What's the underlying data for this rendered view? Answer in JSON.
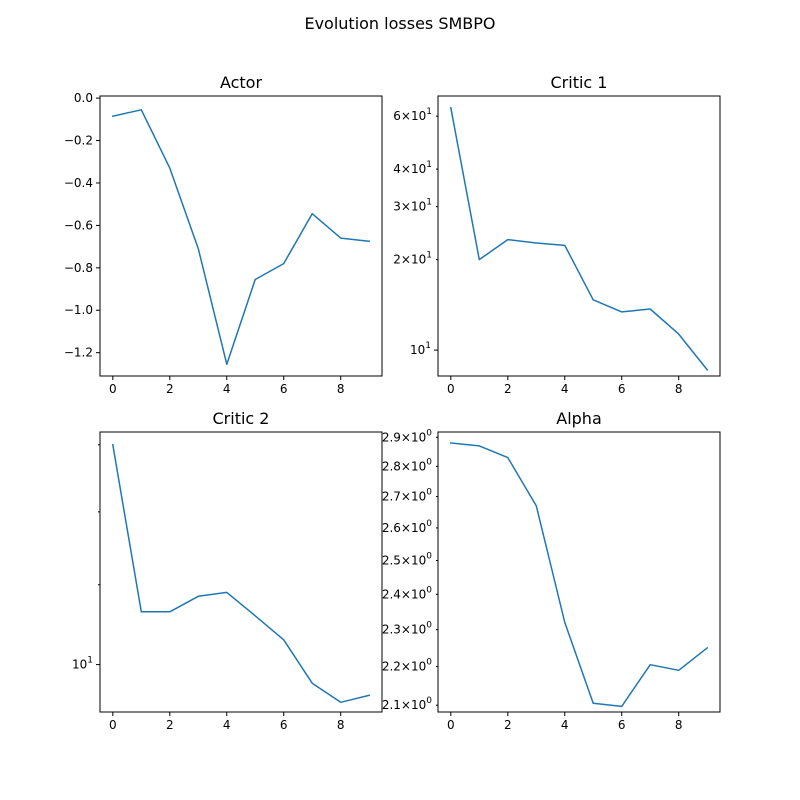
{
  "figure": {
    "title": "Evolution losses SMBPO"
  },
  "line_color": "#1f77b4",
  "chart_data": [
    {
      "id": "actor",
      "type": "line",
      "title": "Actor",
      "xlabel": "",
      "ylabel": "",
      "yscale": "linear",
      "xlim": [
        -0.45,
        9.45
      ],
      "ylim": [
        -1.31,
        0.01
      ],
      "x": [
        0,
        1,
        2,
        3,
        4,
        5,
        6,
        7,
        8,
        9
      ],
      "values": [
        -0.085,
        -0.055,
        -0.33,
        -0.71,
        -1.255,
        -0.855,
        -0.78,
        -0.545,
        -0.66,
        -0.675
      ],
      "xticks": [
        0,
        2,
        4,
        6,
        8
      ],
      "yticks": [
        {
          "v": 0.0,
          "label": "0.0"
        },
        {
          "v": -0.2,
          "label": "−0.2"
        },
        {
          "v": -0.4,
          "label": "−0.4"
        },
        {
          "v": -0.6,
          "label": "−0.6"
        },
        {
          "v": -0.8,
          "label": "−0.8"
        },
        {
          "v": -1.0,
          "label": "−1.0"
        },
        {
          "v": -1.2,
          "label": "−1.2"
        }
      ]
    },
    {
      "id": "critic1",
      "type": "line",
      "title": "Critic 1",
      "xlabel": "",
      "ylabel": "",
      "yscale": "log",
      "xlim": [
        -0.45,
        9.45
      ],
      "ylim": [
        8.2,
        70
      ],
      "x": [
        0,
        1,
        2,
        3,
        4,
        5,
        6,
        7,
        8,
        9
      ],
      "values": [
        64,
        20,
        23.3,
        22.7,
        22.3,
        14.7,
        13.4,
        13.7,
        11.3,
        8.6
      ],
      "xticks": [
        0,
        2,
        4,
        6,
        8
      ],
      "yticks_major": [
        {
          "v": 10,
          "base": "10",
          "exp": "1"
        }
      ],
      "yticks_minor": [
        {
          "v": 20,
          "mant": "2",
          "exp": "1"
        },
        {
          "v": 30,
          "mant": "3",
          "exp": "1"
        },
        {
          "v": 40,
          "mant": "4",
          "exp": "1"
        },
        {
          "v": 60,
          "mant": "6",
          "exp": "1"
        }
      ]
    },
    {
      "id": "critic2",
      "type": "line",
      "title": "Critic 2",
      "xlabel": "",
      "ylabel": "",
      "yscale": "log",
      "xlim": [
        -0.45,
        9.45
      ],
      "ylim": [
        9.45,
        13.2
      ],
      "x": [
        0,
        1,
        2,
        3,
        4,
        5,
        6,
        7,
        8,
        9
      ],
      "values": [
        13.0,
        10.65,
        10.65,
        10.85,
        10.9,
        10.6,
        10.3,
        9.78,
        9.56,
        9.64
      ],
      "xticks": [
        0,
        2,
        4,
        6,
        8
      ],
      "yticks_major": [
        {
          "v": 10,
          "base": "10",
          "exp": "1"
        }
      ],
      "yticks_minor_unlabeled": [
        9,
        11,
        12,
        13
      ]
    },
    {
      "id": "alpha",
      "type": "line",
      "title": "Alpha",
      "xlabel": "",
      "ylabel": "",
      "yscale": "log",
      "xlim": [
        -0.45,
        9.45
      ],
      "ylim": [
        2.0828,
        2.9185
      ],
      "x": [
        0,
        1,
        2,
        3,
        4,
        5,
        6,
        7,
        8,
        9
      ],
      "values": [
        2.88,
        2.87,
        2.83,
        2.67,
        2.32,
        2.105,
        2.097,
        2.205,
        2.19,
        2.25
      ],
      "xticks": [
        0,
        2,
        4,
        6,
        8
      ],
      "yticks_minor": [
        {
          "v": 2.1,
          "mant": "2.1",
          "exp": "0"
        },
        {
          "v": 2.2,
          "mant": "2.2",
          "exp": "0"
        },
        {
          "v": 2.3,
          "mant": "2.3",
          "exp": "0"
        },
        {
          "v": 2.4,
          "mant": "2.4",
          "exp": "0"
        },
        {
          "v": 2.5,
          "mant": "2.5",
          "exp": "0"
        },
        {
          "v": 2.6,
          "mant": "2.6",
          "exp": "0"
        },
        {
          "v": 2.7,
          "mant": "2.7",
          "exp": "0"
        },
        {
          "v": 2.8,
          "mant": "2.8",
          "exp": "0"
        },
        {
          "v": 2.9,
          "mant": "2.9",
          "exp": "0"
        }
      ]
    }
  ]
}
